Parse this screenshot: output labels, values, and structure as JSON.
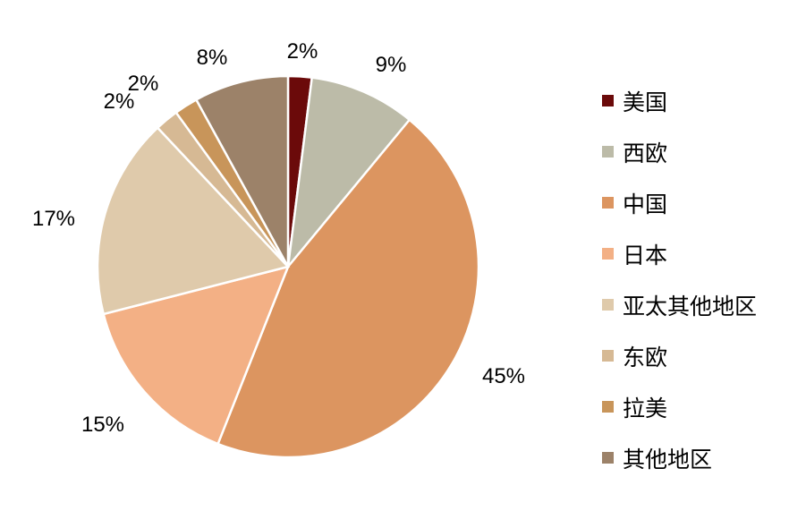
{
  "chart_data": {
    "type": "pie",
    "categories": [
      "美国",
      "西欧",
      "中国",
      "日本",
      "亚太其他地区",
      "东欧",
      "拉美",
      "其他地区"
    ],
    "values": [
      2,
      9,
      45,
      15,
      17,
      2,
      2,
      8
    ],
    "labels": [
      "2%",
      "9%",
      "45%",
      "15%",
      "17%",
      "2%",
      "2%",
      "8%"
    ],
    "colors": [
      "#6b0a0a",
      "#bcbba8",
      "#dc9560",
      "#f3b085",
      "#dfcaab",
      "#d6b994",
      "#c8955a",
      "#9c8269"
    ],
    "start": "top",
    "direction": "clockwise",
    "legend": "right"
  }
}
